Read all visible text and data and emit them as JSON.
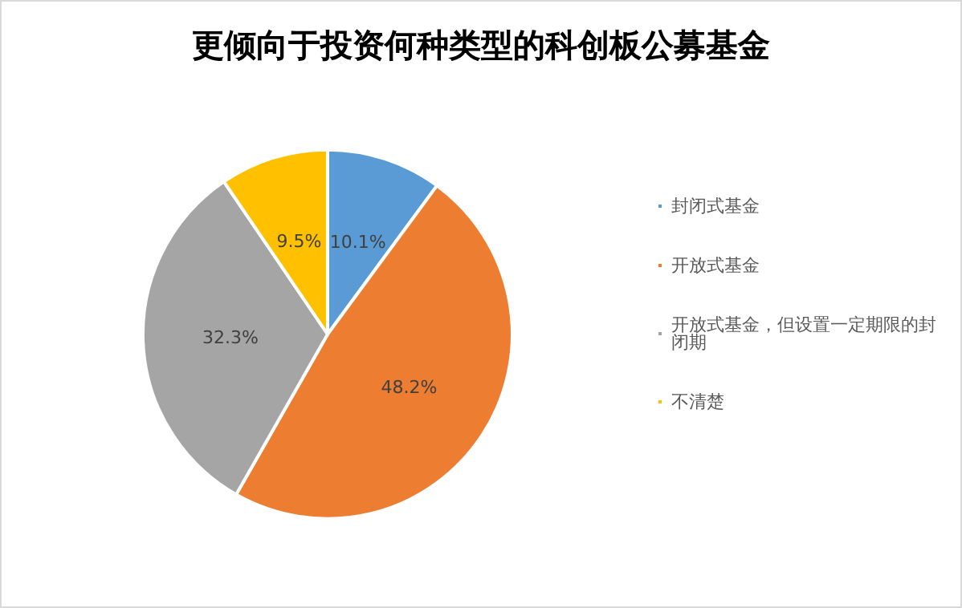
{
  "chart_data": {
    "type": "pie",
    "title": "更倾向于投资何种类型的科创板公募基金",
    "categories": [
      "封闭式基金",
      "开放式基金",
      "开放式基金，但设置一定期限的封闭期",
      "不清楚"
    ],
    "values": [
      10.1,
      48.2,
      32.3,
      9.5
    ],
    "colors": [
      "#5b9bd5",
      "#ed7d31",
      "#a5a5a5",
      "#ffc000"
    ],
    "value_labels": [
      "10.1%",
      "48.2%",
      "32.3%",
      "9.5%"
    ],
    "legend": "right"
  }
}
